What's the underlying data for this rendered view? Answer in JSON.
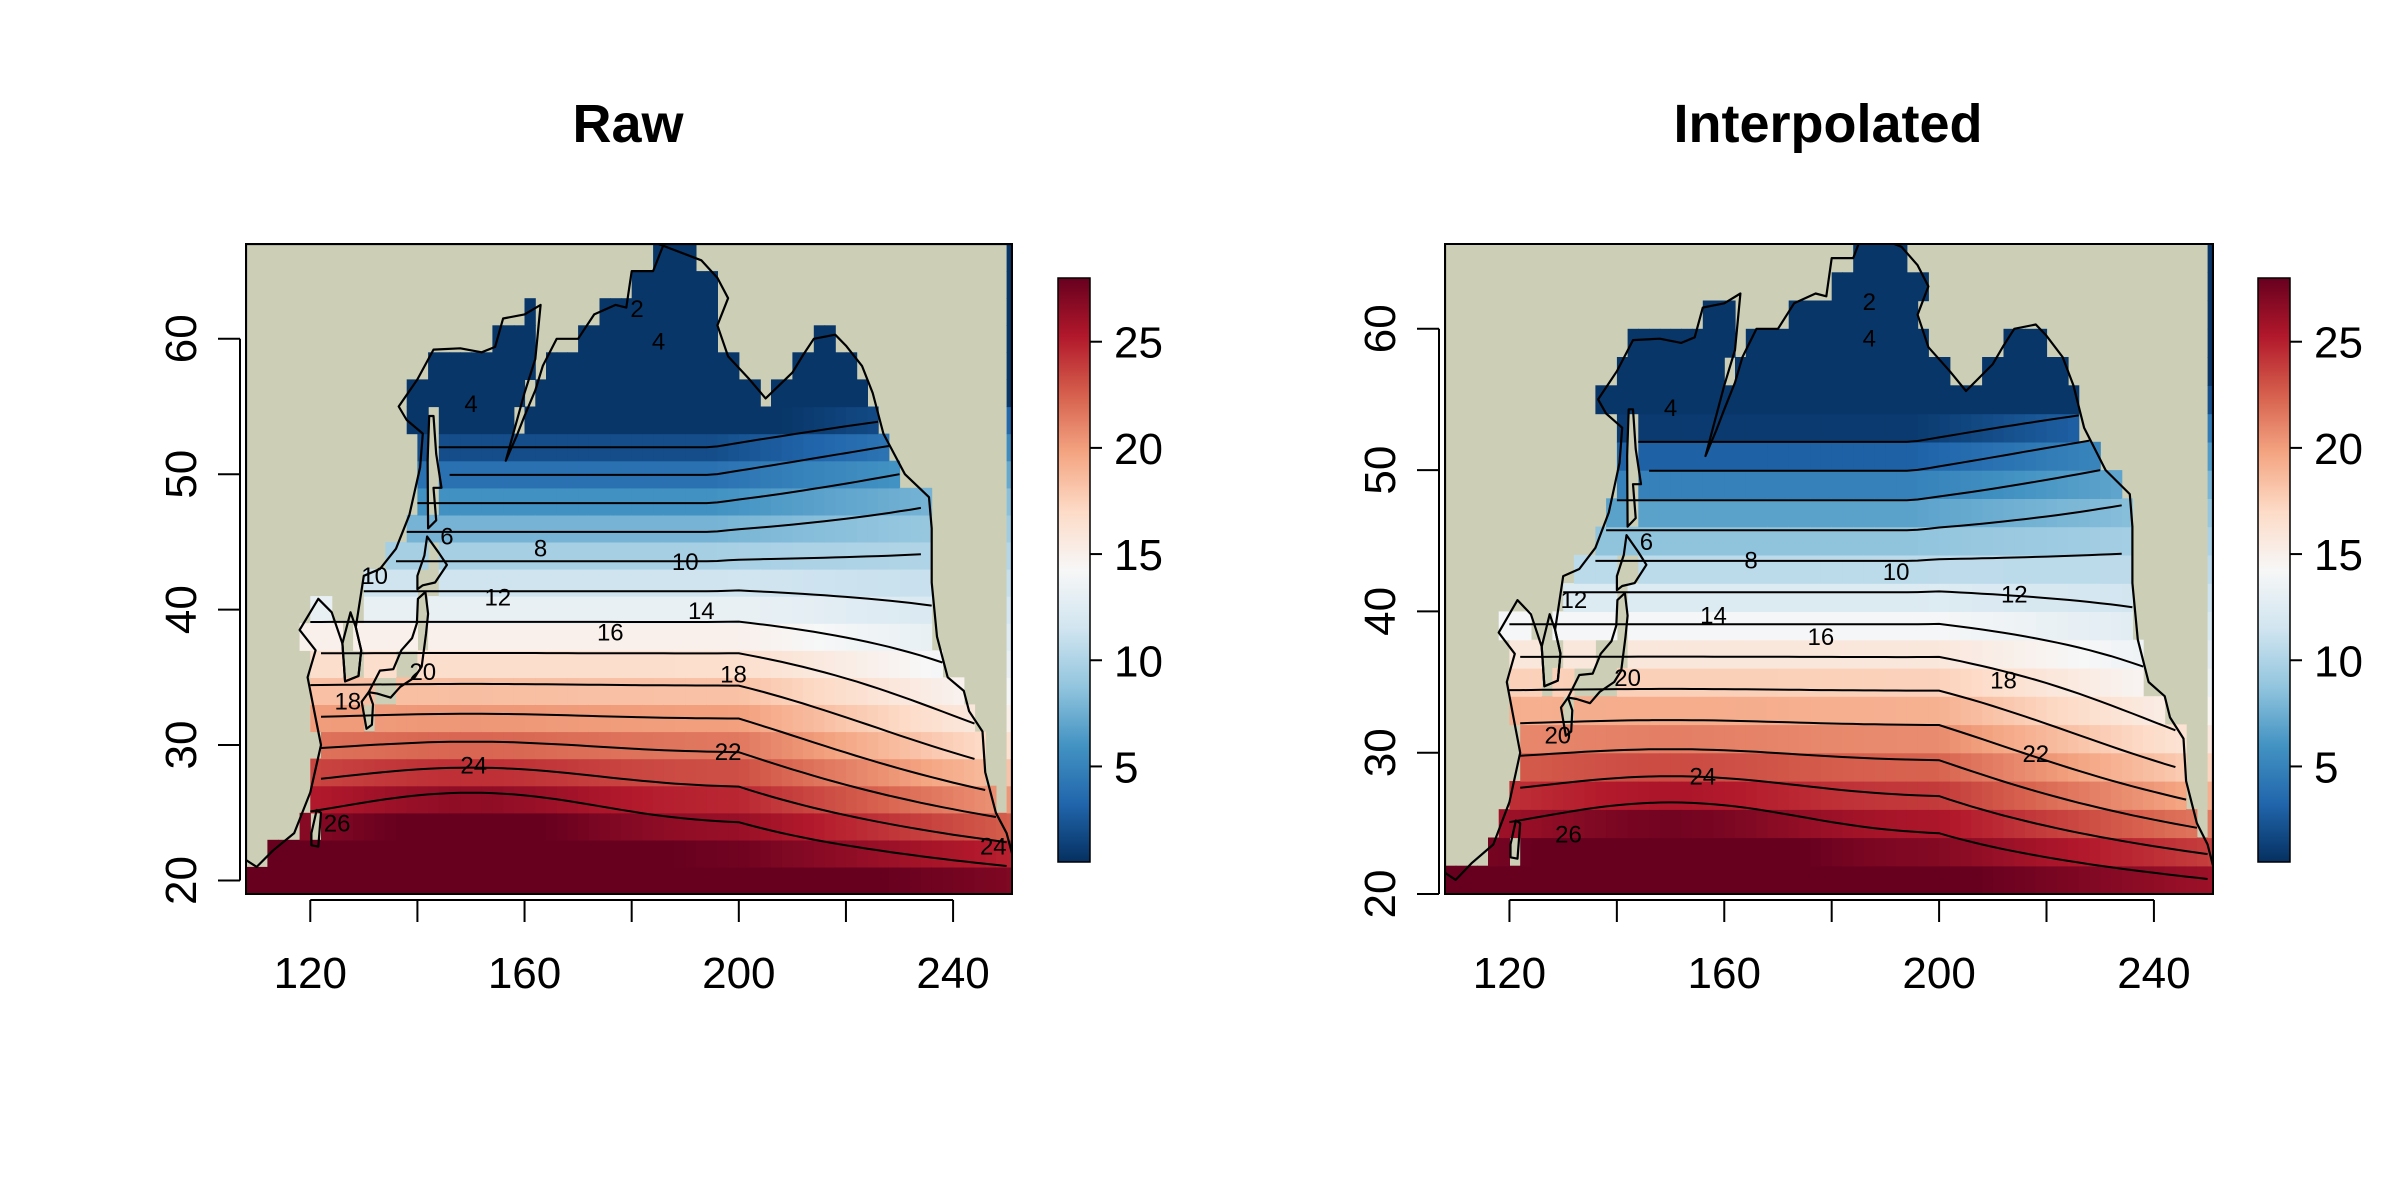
{
  "figure": {
    "background": "#ffffff",
    "land_color": "#cccfb5"
  },
  "chart_data": [
    {
      "type": "heatmap",
      "title": "Raw",
      "xlim": [
        108,
        251
      ],
      "ylim": [
        19,
        67
      ],
      "x_ticks": [
        120,
        160,
        200,
        240
      ],
      "y_ticks": [
        20,
        30,
        40,
        50,
        60
      ],
      "colorbar": {
        "min": 0.5,
        "max": 28,
        "ticks": [
          5,
          10,
          15,
          20,
          25
        ],
        "colors": [
          "#053061",
          "#2166ac",
          "#4393c3",
          "#92c5de",
          "#d1e5f0",
          "#f7f7f7",
          "#fddbc7",
          "#f4a582",
          "#d6604d",
          "#b2182b",
          "#67001f"
        ]
      },
      "contour_levels": [
        2,
        4,
        6,
        8,
        10,
        12,
        14,
        16,
        18,
        20,
        22,
        24,
        26
      ],
      "contour_labels": [
        {
          "text": "2",
          "lon": 181,
          "lat": 62.2
        },
        {
          "text": "4",
          "lon": 185,
          "lat": 59.8
        },
        {
          "text": "4",
          "lon": 150,
          "lat": 55.2
        },
        {
          "text": "6",
          "lon": 145.5,
          "lat": 45.4
        },
        {
          "text": "8",
          "lon": 163,
          "lat": 44.5
        },
        {
          "text": "10",
          "lon": 132,
          "lat": 42.5
        },
        {
          "text": "10",
          "lon": 190,
          "lat": 43.5
        },
        {
          "text": "12",
          "lon": 155,
          "lat": 40.9
        },
        {
          "text": "14",
          "lon": 193,
          "lat": 39.9
        },
        {
          "text": "16",
          "lon": 176,
          "lat": 38.3
        },
        {
          "text": "18",
          "lon": 127,
          "lat": 33.2
        },
        {
          "text": "18",
          "lon": 199,
          "lat": 35.2
        },
        {
          "text": "20",
          "lon": 141,
          "lat": 35.4
        },
        {
          "text": "22",
          "lon": 198,
          "lat": 29.5
        },
        {
          "text": "24",
          "lon": 150.5,
          "lat": 28.5
        },
        {
          "text": "24",
          "lon": 247.5,
          "lat": 22.5
        },
        {
          "text": "26",
          "lon": 125,
          "lat": 24.2
        }
      ]
    },
    {
      "type": "heatmap",
      "title": "Interpolated",
      "xlim": [
        108,
        251
      ],
      "ylim": [
        20,
        66
      ],
      "x_ticks": [
        120,
        160,
        200,
        240
      ],
      "y_ticks": [
        20,
        30,
        40,
        50,
        60
      ],
      "colorbar": {
        "min": 0.5,
        "max": 28,
        "ticks": [
          5,
          10,
          15,
          20,
          25
        ],
        "colors": [
          "#053061",
          "#2166ac",
          "#4393c3",
          "#92c5de",
          "#d1e5f0",
          "#f7f7f7",
          "#fddbc7",
          "#f4a582",
          "#d6604d",
          "#b2182b",
          "#67001f"
        ]
      },
      "contour_levels": [
        2,
        4,
        6,
        8,
        10,
        12,
        14,
        16,
        18,
        20,
        22,
        24,
        26
      ],
      "contour_labels": [
        {
          "text": "2",
          "lon": 187,
          "lat": 61.9
        },
        {
          "text": "4",
          "lon": 187,
          "lat": 59.3
        },
        {
          "text": "4",
          "lon": 150,
          "lat": 54.4
        },
        {
          "text": "6",
          "lon": 145.5,
          "lat": 44.9
        },
        {
          "text": "8",
          "lon": 165,
          "lat": 43.6
        },
        {
          "text": "10",
          "lon": 192,
          "lat": 42.8
        },
        {
          "text": "12",
          "lon": 132,
          "lat": 40.8
        },
        {
          "text": "12",
          "lon": 214,
          "lat": 41.2
        },
        {
          "text": "14",
          "lon": 158,
          "lat": 39.7
        },
        {
          "text": "16",
          "lon": 178,
          "lat": 38.2
        },
        {
          "text": "18",
          "lon": 212,
          "lat": 35.1
        },
        {
          "text": "20",
          "lon": 142,
          "lat": 35.3
        },
        {
          "text": "20",
          "lon": 129,
          "lat": 31.2
        },
        {
          "text": "22",
          "lon": 218,
          "lat": 29.9
        },
        {
          "text": "24",
          "lon": 156,
          "lat": 28.3
        },
        {
          "text": "26",
          "lon": 131,
          "lat": 24.2
        }
      ]
    }
  ]
}
